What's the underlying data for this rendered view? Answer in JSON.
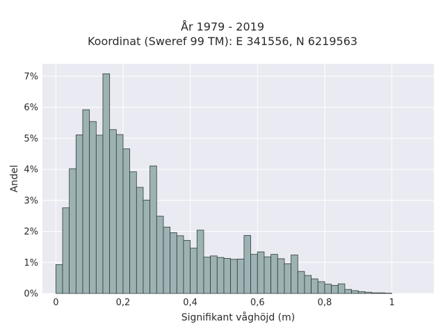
{
  "chart_data": {
    "type": "bar",
    "title_lines": [
      "År 1979 - 2019",
      "Koordinat (Sweref 99 TM): E 341556, N 6219563"
    ],
    "xlabel": "Signifikant våghöjd (m)",
    "ylabel": "Andel",
    "bin_width": 0.02,
    "bin_start": 0.0,
    "xlim": [
      -0.04,
      1.125
    ],
    "ylim": [
      0,
      7.4
    ],
    "x_ticks": [
      0,
      0.2,
      0.4,
      0.6,
      0.8,
      1
    ],
    "x_tick_labels": [
      "0",
      "0,2",
      "0,4",
      "0,6",
      "0,8",
      "1"
    ],
    "y_ticks": [
      0,
      1,
      2,
      3,
      4,
      5,
      6,
      7
    ],
    "y_tick_labels": [
      "0%",
      "1%",
      "2%",
      "3%",
      "4%",
      "5%",
      "6%",
      "7%"
    ],
    "values": [
      0.93,
      2.76,
      4.02,
      5.11,
      5.92,
      5.54,
      5.1,
      7.08,
      5.28,
      5.12,
      4.66,
      3.92,
      3.42,
      3.01,
      4.11,
      2.49,
      2.14,
      1.96,
      1.86,
      1.71,
      1.46,
      2.04,
      1.17,
      1.21,
      1.16,
      1.13,
      1.1,
      1.11,
      1.87,
      1.26,
      1.34,
      1.18,
      1.26,
      1.12,
      0.96,
      1.24,
      0.71,
      0.58,
      0.47,
      0.38,
      0.3,
      0.26,
      0.31,
      0.13,
      0.09,
      0.06,
      0.04,
      0.02,
      0.02,
      0.01
    ],
    "grid": true,
    "colors": {
      "bar_fill": "#9db2b3",
      "bar_edge": "#2f3a3a",
      "plot_background": "#eaeaf2",
      "grid": "#ffffff"
    }
  }
}
